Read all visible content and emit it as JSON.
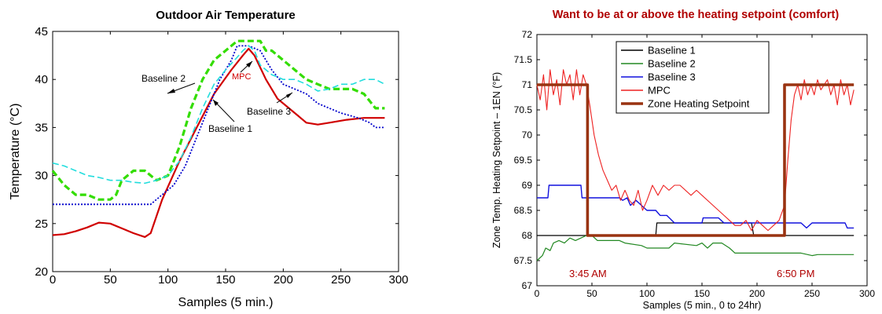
{
  "chart_data": [
    {
      "type": "line",
      "title": "Outdoor Air Temperature",
      "xlabel": "Samples (5 min.)",
      "ylabel": "Temperature (°C)",
      "xlim": [
        0,
        300
      ],
      "ylim": [
        20,
        45
      ],
      "xticks": [
        0,
        50,
        100,
        150,
        200,
        250,
        300
      ],
      "yticks": [
        20,
        25,
        30,
        35,
        40,
        45
      ],
      "grid": false,
      "annotations": {
        "baseline2": "Baseline 2",
        "baseline1": "Baseline 1",
        "baseline3": "Baseline 3",
        "mpc": "MPC"
      },
      "series": [
        {
          "name": "Baseline 1",
          "color": "#d00000",
          "x": [
            0,
            10,
            20,
            30,
            40,
            50,
            60,
            70,
            80,
            85,
            95,
            110,
            125,
            140,
            155,
            165,
            170,
            175,
            185,
            195,
            210,
            220,
            230,
            240,
            255,
            270,
            280,
            288
          ],
          "y": [
            23.8,
            23.9,
            24.2,
            24.6,
            25.1,
            25.0,
            24.5,
            24.0,
            23.6,
            24.0,
            27.5,
            31.5,
            35.0,
            38.5,
            41.0,
            42.5,
            43.2,
            42.5,
            40.0,
            38.0,
            36.5,
            35.5,
            35.3,
            35.5,
            35.8,
            36.0,
            36.0,
            36.0
          ]
        },
        {
          "name": "Baseline 2",
          "color": "#33dd00",
          "dash": "dashed",
          "x": [
            0,
            10,
            20,
            30,
            40,
            50,
            55,
            60,
            70,
            80,
            90,
            100,
            110,
            120,
            130,
            140,
            150,
            155,
            160,
            170,
            180,
            185,
            190,
            200,
            210,
            220,
            230,
            240,
            250,
            260,
            270,
            280,
            288
          ],
          "y": [
            30.5,
            29.0,
            28.0,
            28.0,
            27.5,
            27.5,
            28.0,
            29.5,
            30.5,
            30.5,
            29.5,
            30.0,
            33.0,
            37.0,
            40.0,
            42.0,
            43.0,
            43.5,
            44.0,
            44.0,
            44.0,
            43.0,
            43.0,
            42.0,
            41.0,
            40.0,
            39.5,
            39.0,
            39.0,
            39.0,
            38.5,
            37.0,
            37.0
          ]
        },
        {
          "name": "Baseline 3",
          "color": "#0000cc",
          "dash": "dotted",
          "x": [
            0,
            30,
            60,
            85,
            95,
            105,
            115,
            125,
            135,
            145,
            155,
            160,
            170,
            180,
            190,
            200,
            210,
            220,
            230,
            240,
            250,
            265,
            275,
            280,
            288
          ],
          "y": [
            27.0,
            27.0,
            27.0,
            27.0,
            28.0,
            29.0,
            31.0,
            34.0,
            37.0,
            40.0,
            42.0,
            43.5,
            43.5,
            43.0,
            41.0,
            39.5,
            39.0,
            38.5,
            37.5,
            37.0,
            36.5,
            36.0,
            35.5,
            35.0,
            35.0
          ]
        },
        {
          "name": "MPC",
          "color": "#22dddd",
          "dash": "dashed",
          "x": [
            0,
            10,
            20,
            30,
            40,
            50,
            60,
            70,
            80,
            90,
            100,
            110,
            120,
            130,
            140,
            150,
            160,
            165,
            170,
            175,
            180,
            190,
            200,
            210,
            220,
            230,
            240,
            250,
            260,
            270,
            280,
            288
          ],
          "y": [
            31.3,
            31.0,
            30.5,
            30.0,
            29.8,
            29.5,
            29.5,
            29.3,
            29.2,
            29.5,
            30.0,
            31.5,
            34.0,
            37.0,
            39.5,
            41.0,
            42.3,
            43.0,
            43.5,
            43.0,
            41.5,
            40.5,
            40.0,
            40.0,
            39.5,
            38.8,
            39.0,
            39.5,
            39.5,
            40.0,
            40.0,
            39.5
          ]
        }
      ]
    },
    {
      "type": "line",
      "title": "Want to be at or above the heating setpoint (comfort)",
      "xlabel": "Samples (5 min., 0 to 24hr)",
      "ylabel": "Zone Temp. Heating Setpoint – 1EN (°F)",
      "xlim": [
        0,
        300
      ],
      "ylim": [
        67,
        72
      ],
      "xticks": [
        0,
        50,
        100,
        150,
        200,
        250,
        300
      ],
      "yticks": [
        67,
        67.5,
        68,
        68.5,
        69,
        69.5,
        70,
        70.5,
        71,
        71.5,
        72
      ],
      "grid": false,
      "legend_position": "top",
      "annotations": {
        "start_time": "3:45 AM",
        "end_time": "6:50 PM"
      },
      "series": [
        {
          "name": "Baseline 1",
          "color": "#000000",
          "x": [
            0,
            45,
            46,
            108,
            109,
            195,
            197,
            288
          ],
          "y": [
            68.0,
            68.0,
            68.0,
            68.0,
            68.25,
            68.25,
            68.0,
            68.0
          ]
        },
        {
          "name": "Baseline 2",
          "color": "#228822",
          "x": [
            0,
            5,
            8,
            12,
            15,
            20,
            25,
            30,
            35,
            40,
            45,
            50,
            55,
            75,
            80,
            95,
            100,
            120,
            125,
            145,
            150,
            155,
            160,
            168,
            175,
            180,
            185,
            200,
            240,
            250,
            255,
            265,
            288
          ],
          "y": [
            67.5,
            67.6,
            67.75,
            67.7,
            67.85,
            67.9,
            67.85,
            67.95,
            67.9,
            67.95,
            68.0,
            68.0,
            67.9,
            67.9,
            67.85,
            67.8,
            67.75,
            67.75,
            67.85,
            67.8,
            67.85,
            67.75,
            67.85,
            67.85,
            67.75,
            67.65,
            67.65,
            67.65,
            67.65,
            67.6,
            67.62,
            67.62,
            67.62
          ]
        },
        {
          "name": "Baseline 3",
          "color": "#1111dd",
          "x": [
            0,
            10,
            11,
            40,
            41,
            75,
            78,
            82,
            85,
            90,
            95,
            100,
            108,
            112,
            118,
            125,
            130,
            150,
            151,
            165,
            170,
            200,
            210,
            220,
            240,
            245,
            250,
            280,
            282,
            288
          ],
          "y": [
            68.75,
            68.75,
            69.0,
            69.0,
            68.75,
            68.75,
            68.7,
            68.75,
            68.6,
            68.7,
            68.6,
            68.5,
            68.5,
            68.4,
            68.4,
            68.25,
            68.25,
            68.25,
            68.35,
            68.35,
            68.25,
            68.25,
            68.25,
            68.25,
            68.25,
            68.15,
            68.25,
            68.25,
            68.15,
            68.15
          ]
        },
        {
          "name": "MPC",
          "color": "#ee2222",
          "x": [
            0,
            3,
            6,
            9,
            12,
            15,
            18,
            21,
            24,
            27,
            30,
            33,
            36,
            39,
            42,
            45,
            48,
            52,
            56,
            60,
            64,
            68,
            72,
            76,
            80,
            84,
            88,
            92,
            96,
            100,
            105,
            110,
            115,
            120,
            125,
            130,
            140,
            145,
            150,
            160,
            165,
            170,
            175,
            180,
            185,
            190,
            195,
            200,
            205,
            210,
            215,
            220,
            225,
            228,
            231,
            234,
            237,
            240,
            243,
            246,
            249,
            252,
            255,
            258,
            261,
            264,
            267,
            270,
            273,
            276,
            279,
            282,
            285,
            288
          ],
          "y": [
            71.0,
            70.7,
            71.2,
            70.5,
            71.3,
            70.8,
            71.1,
            70.6,
            71.3,
            71.0,
            71.2,
            70.7,
            71.3,
            70.8,
            71.2,
            71.0,
            70.6,
            70.0,
            69.6,
            69.3,
            69.1,
            68.9,
            69.0,
            68.7,
            68.9,
            68.7,
            68.6,
            68.9,
            68.5,
            68.7,
            69.0,
            68.8,
            69.0,
            68.9,
            69.0,
            69.0,
            68.8,
            68.9,
            68.8,
            68.6,
            68.5,
            68.4,
            68.3,
            68.2,
            68.2,
            68.3,
            68.1,
            68.3,
            68.2,
            68.1,
            68.2,
            68.3,
            68.6,
            69.5,
            70.3,
            70.8,
            71.0,
            70.7,
            71.1,
            70.8,
            71.0,
            70.8,
            71.1,
            70.9,
            71.0,
            71.1,
            70.8,
            71.0,
            70.6,
            71.1,
            70.8,
            71.0,
            70.6,
            70.9
          ]
        },
        {
          "name": "Zone Heating Setpoint",
          "color": "#993311",
          "x": [
            0,
            46,
            46,
            225,
            225,
            288
          ],
          "y": [
            71.0,
            71.0,
            68.0,
            68.0,
            71.0,
            71.0
          ]
        }
      ]
    }
  ]
}
